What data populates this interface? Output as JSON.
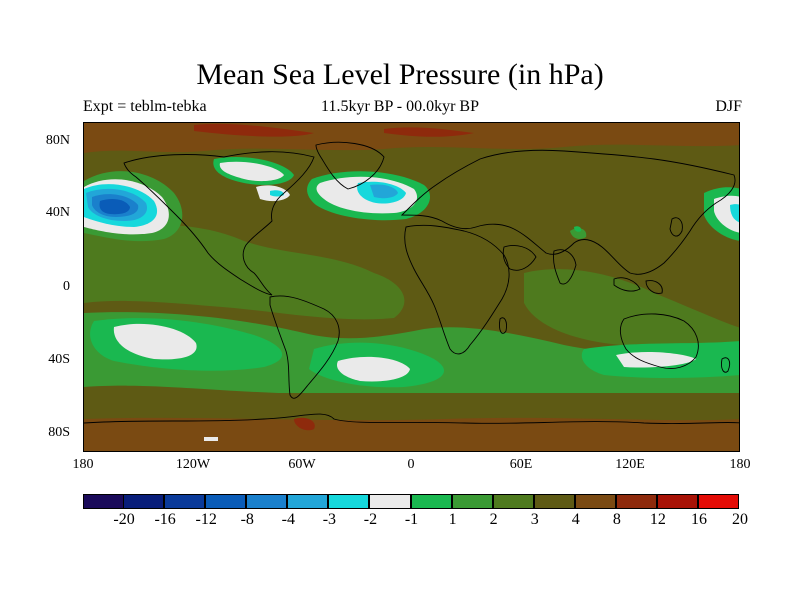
{
  "title": "Mean Sea Level Pressure (in hPa)",
  "subtitle_left": "Expt = teblm-tebka",
  "subtitle_center": "11.5kyr BP - 00.0kyr BP",
  "subtitle_right": "DJF",
  "lat_labels": [
    "80N",
    "40N",
    "0",
    "40S",
    "80S"
  ],
  "lon_labels": [
    "180",
    "120W",
    "60W",
    "0",
    "60E",
    "120E",
    "180"
  ],
  "colorbar": {
    "colors": [
      "#1a0a5a",
      "#081d7a",
      "#0a3a9a",
      "#0a5cb8",
      "#1a80cc",
      "#22a6d8",
      "#16d8dc",
      "#eaeaea",
      "#1ab850",
      "#3a9a34",
      "#4e7a1e",
      "#5e5a14",
      "#7a4a12",
      "#8e2a0c",
      "#a81206",
      "#e40c06"
    ],
    "labels": [
      "-20",
      "-16",
      "-12",
      "-8",
      "-4",
      "-3",
      "-2",
      "-1",
      "1",
      "2",
      "3",
      "4",
      "8",
      "12",
      "16",
      "20"
    ]
  },
  "chart_data": {
    "type": "map",
    "variable": "Mean Sea Level Pressure difference",
    "units": "hPa",
    "experiment": "teblm-tebka",
    "period": "11.5kyr BP - 00.0kyr BP",
    "season": "DJF",
    "lon_range": [
      -180,
      180
    ],
    "lat_range": [
      -90,
      90
    ],
    "levels": [
      -20,
      -16,
      -12,
      -8,
      -4,
      -3,
      -2,
      -1,
      1,
      2,
      3,
      4,
      8,
      12,
      16,
      20
    ],
    "features": [
      {
        "name": "North Pacific low",
        "lon": -155,
        "lat": 45,
        "min_class": "-8"
      },
      {
        "name": "North Atlantic low",
        "lon": -28,
        "lat": 50,
        "min_class": "-4"
      },
      {
        "name": "South Pacific negative anomaly",
        "lon": -125,
        "lat": -35,
        "min_class": "-1"
      },
      {
        "name": "South Atlantic negative anomaly",
        "lon": -20,
        "lat": -45,
        "min_class": "-1"
      },
      {
        "name": "Southern Ocean band",
        "lat": -45,
        "class": "1 to 2"
      },
      {
        "name": "Arctic / high latitudes",
        "lat": 80,
        "class": "8 to 12"
      },
      {
        "name": "Continents",
        "class": "4 to 8"
      }
    ]
  }
}
